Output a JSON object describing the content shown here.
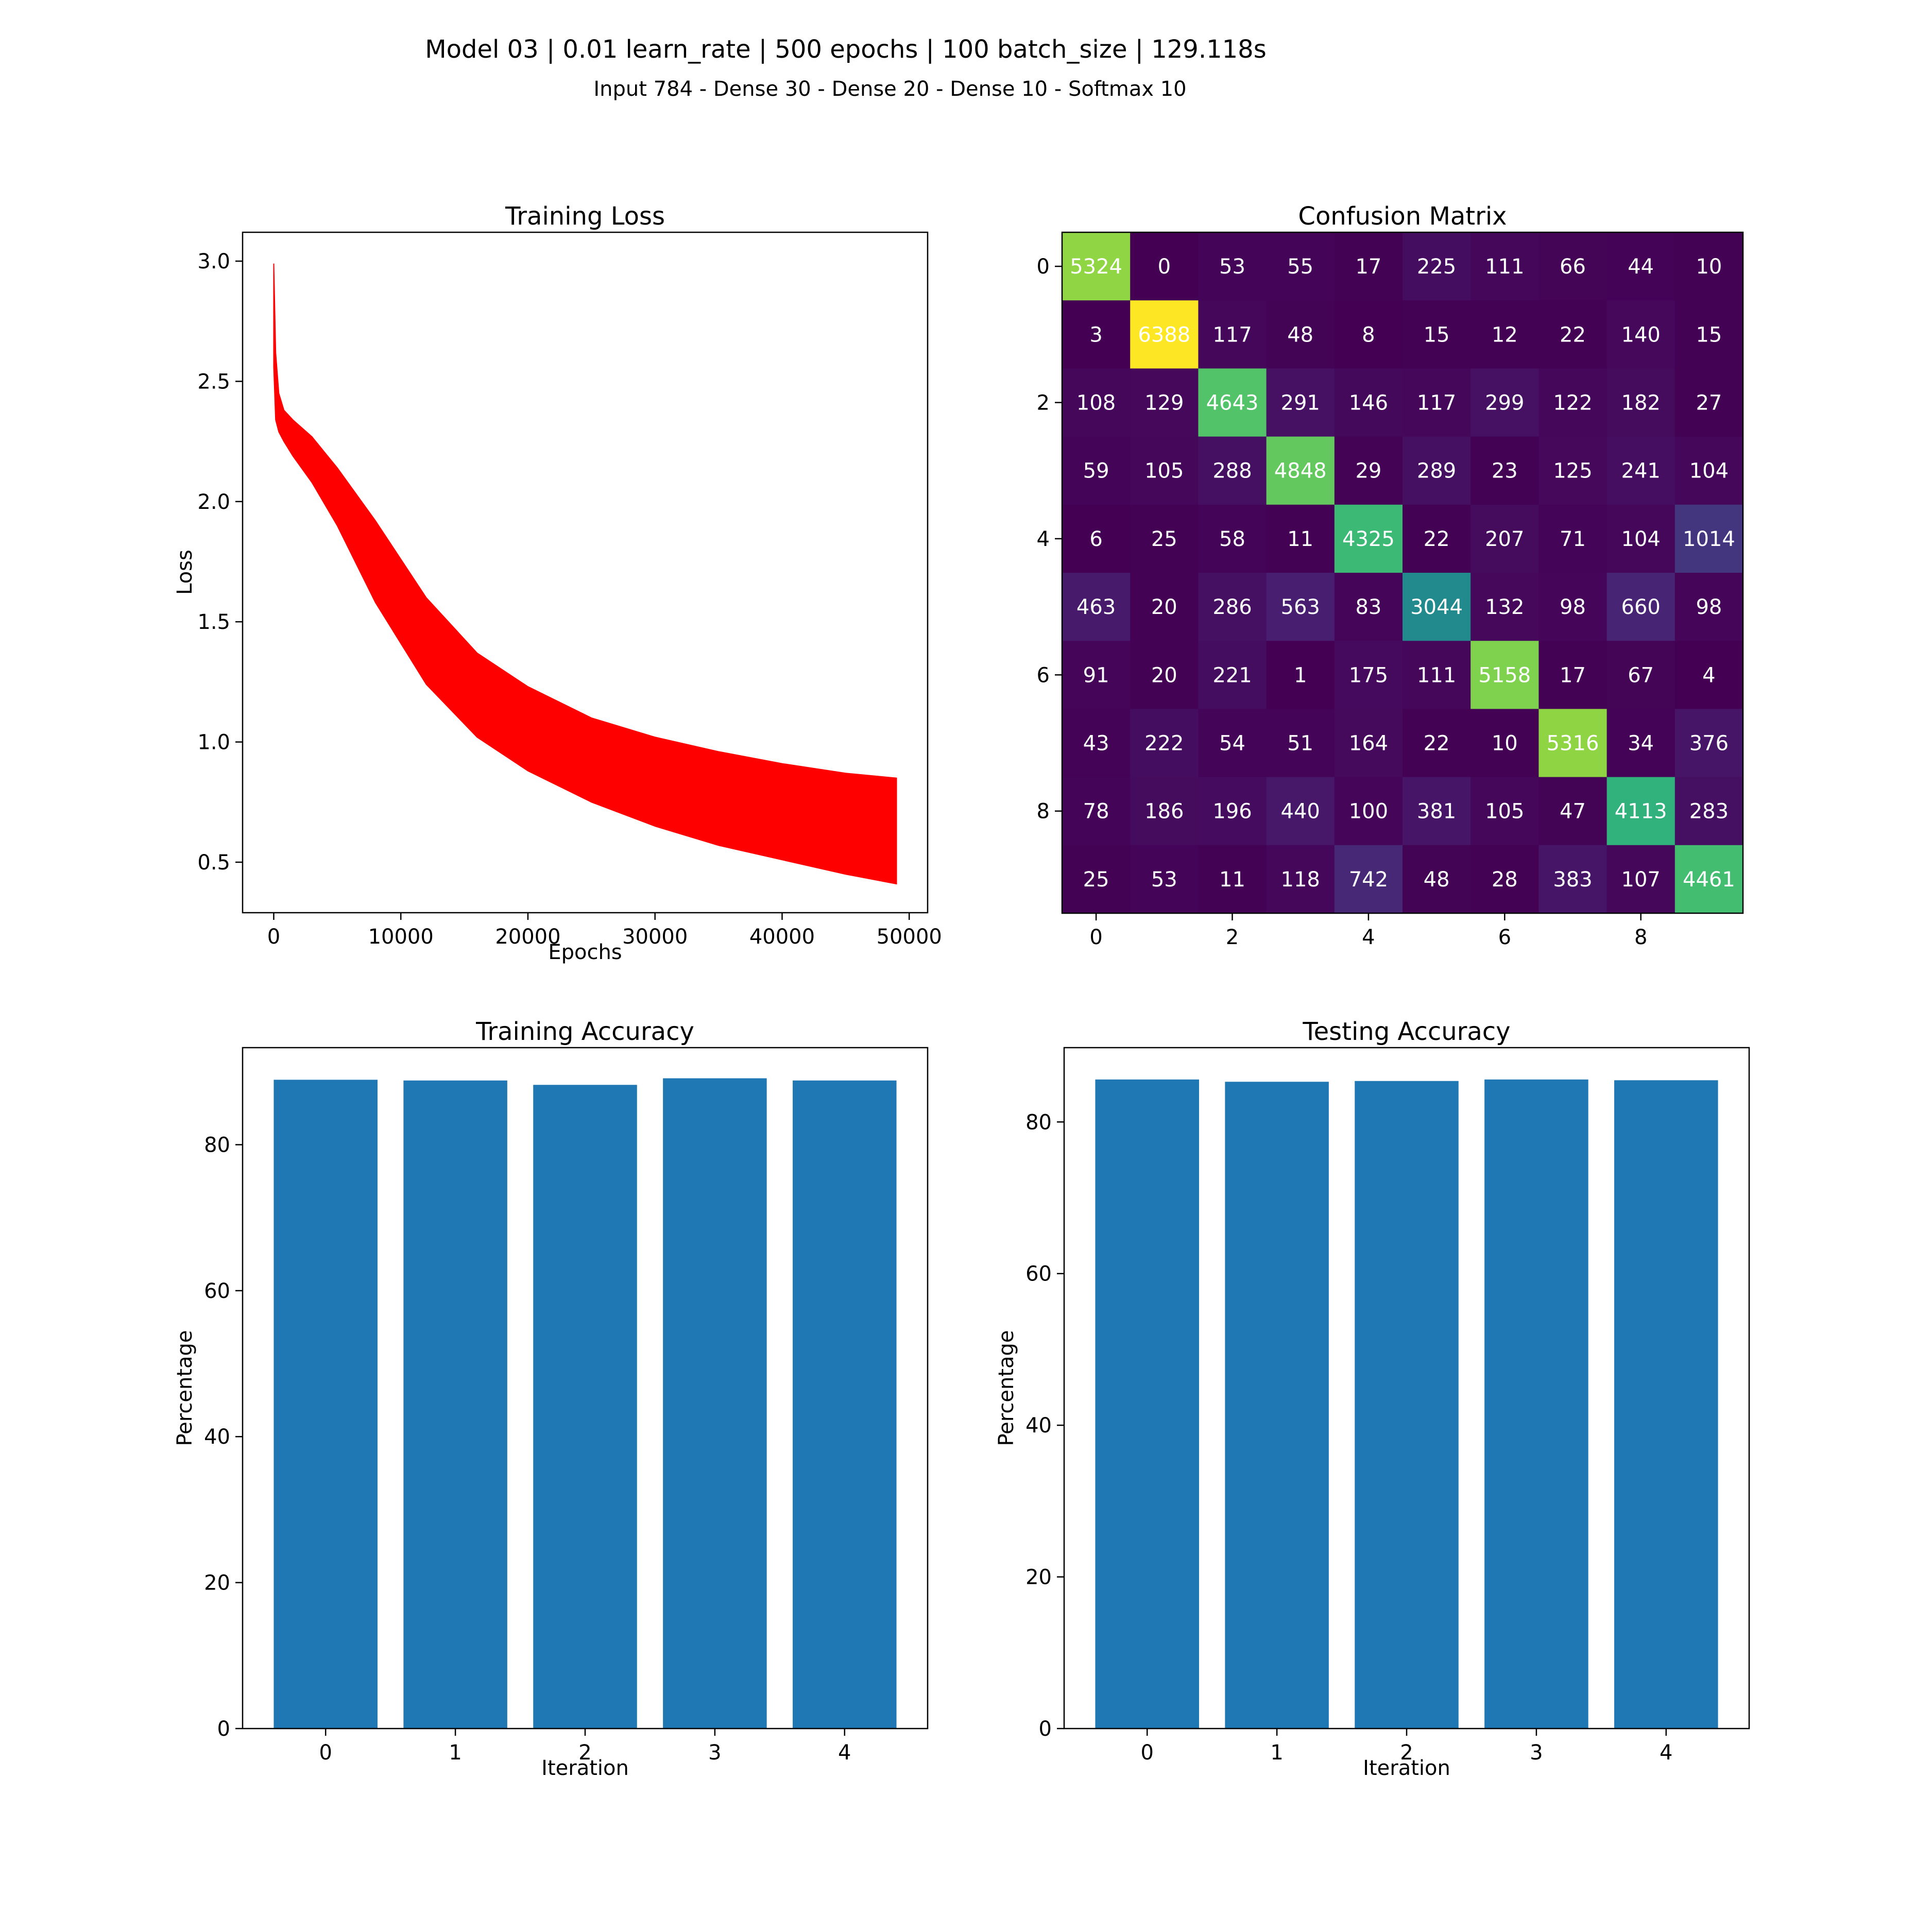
{
  "figure": {
    "title": "Model 03 | 0.01 learn_rate | 500 epochs | 100 batch_size | 129.118s",
    "subtitle": "Input 784 - Dense 30 - Dense 20 - Dense 10 - Softmax 10"
  },
  "chart_data": [
    {
      "id": "training-loss",
      "type": "line",
      "title": "Training Loss",
      "xlabel": "Epochs",
      "ylabel": "Loss",
      "xlim": [
        -2450,
        51450
      ],
      "ylim": [
        0.29,
        3.12
      ],
      "xticks": [
        0,
        10000,
        20000,
        30000,
        40000,
        50000
      ],
      "yticks": [
        0.5,
        1.0,
        1.5,
        2.0,
        2.5,
        3.0
      ],
      "ytick_labels": [
        "0.5",
        "1.0",
        "1.5",
        "2.0",
        "2.5",
        "3.0"
      ],
      "color": "#ff0000",
      "series": [
        {
          "role": "upper-envelope",
          "x": [
            0,
            150,
            400,
            800,
            1500,
            3000,
            5000,
            8000,
            12000,
            16000,
            20000,
            25000,
            30000,
            35000,
            40000,
            45000,
            49000
          ],
          "y": [
            2.99,
            2.62,
            2.45,
            2.38,
            2.34,
            2.27,
            2.14,
            1.92,
            1.6,
            1.37,
            1.23,
            1.1,
            1.02,
            0.96,
            0.91,
            0.87,
            0.85
          ]
        },
        {
          "role": "lower-envelope",
          "x": [
            0,
            150,
            400,
            800,
            1500,
            3000,
            5000,
            8000,
            12000,
            16000,
            20000,
            25000,
            30000,
            35000,
            40000,
            45000,
            49000
          ],
          "y": [
            2.56,
            2.34,
            2.29,
            2.25,
            2.19,
            2.08,
            1.9,
            1.58,
            1.24,
            1.02,
            0.88,
            0.75,
            0.65,
            0.57,
            0.51,
            0.45,
            0.41
          ]
        }
      ]
    },
    {
      "id": "confusion-matrix",
      "type": "heatmap",
      "title": "Confusion Matrix",
      "colormap": "viridis",
      "xticks": [
        0,
        2,
        4,
        6,
        8
      ],
      "yticks": [
        0,
        2,
        4,
        6,
        8
      ],
      "matrix": [
        [
          5324,
          0,
          53,
          55,
          17,
          225,
          111,
          66,
          44,
          10
        ],
        [
          3,
          6388,
          117,
          48,
          8,
          15,
          12,
          22,
          140,
          15
        ],
        [
          108,
          129,
          4643,
          291,
          146,
          117,
          299,
          122,
          182,
          27
        ],
        [
          59,
          105,
          288,
          4848,
          29,
          289,
          23,
          125,
          241,
          104
        ],
        [
          6,
          25,
          58,
          11,
          4325,
          22,
          207,
          71,
          104,
          1014
        ],
        [
          463,
          20,
          286,
          563,
          83,
          3044,
          132,
          98,
          660,
          98
        ],
        [
          91,
          20,
          221,
          1,
          175,
          111,
          5158,
          17,
          67,
          4
        ],
        [
          43,
          222,
          54,
          51,
          164,
          22,
          10,
          5316,
          34,
          376
        ],
        [
          78,
          186,
          196,
          440,
          100,
          381,
          105,
          47,
          4113,
          283
        ],
        [
          25,
          53,
          11,
          118,
          742,
          48,
          28,
          383,
          107,
          4461
        ]
      ]
    },
    {
      "id": "training-accuracy",
      "type": "bar",
      "title": "Training Accuracy",
      "xlabel": "Iteration",
      "ylabel": "Percentage",
      "categories": [
        "0",
        "1",
        "2",
        "3",
        "4"
      ],
      "values": [
        88.9,
        88.8,
        88.2,
        89.1,
        88.8
      ],
      "ylim": [
        0,
        93.3
      ],
      "yticks": [
        0,
        20,
        40,
        60,
        80
      ],
      "color": "#1f77b4"
    },
    {
      "id": "testing-accuracy",
      "type": "bar",
      "title": "Testing Accuracy",
      "xlabel": "Iteration",
      "ylabel": "Percentage",
      "categories": [
        "0",
        "1",
        "2",
        "3",
        "4"
      ],
      "values": [
        85.6,
        85.3,
        85.4,
        85.6,
        85.5
      ],
      "ylim": [
        0,
        89.8
      ],
      "yticks": [
        0,
        20,
        40,
        60,
        80
      ],
      "color": "#1f77b4"
    }
  ]
}
